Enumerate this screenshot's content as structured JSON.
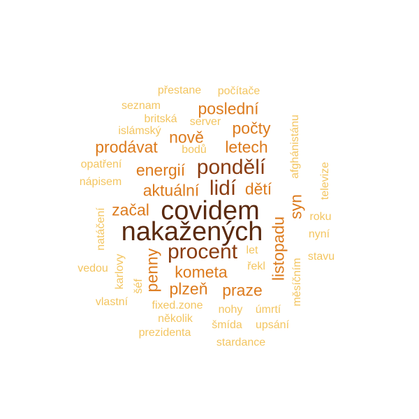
{
  "palette": {
    "darkest": "#5a2a0f",
    "dark": "#8a3c10",
    "medium_dark": "#b8530f",
    "medium": "#dc7a1c",
    "light": "#eda93a",
    "lightest": "#f3c560"
  },
  "words": [
    {
      "text": "přestane",
      "tone": "lightest"
    },
    {
      "text": "počítače",
      "tone": "lightest"
    },
    {
      "text": "seznam",
      "tone": "lightest"
    },
    {
      "text": "poslední",
      "tone": "medium"
    },
    {
      "text": "britská",
      "tone": "lightest"
    },
    {
      "text": "server",
      "tone": "lightest"
    },
    {
      "text": "islámský",
      "tone": "lightest"
    },
    {
      "text": "počty",
      "tone": "medium"
    },
    {
      "text": "nově",
      "tone": "medium"
    },
    {
      "text": "afghánistánu",
      "tone": "lightest"
    },
    {
      "text": "prodávat",
      "tone": "medium"
    },
    {
      "text": "bodů",
      "tone": "lightest"
    },
    {
      "text": "letech",
      "tone": "medium"
    },
    {
      "text": "opatření",
      "tone": "lightest"
    },
    {
      "text": "energií",
      "tone": "medium"
    },
    {
      "text": "pondělí",
      "tone": "dark"
    },
    {
      "text": "televize",
      "tone": "lightest"
    },
    {
      "text": "nápisem",
      "tone": "lightest"
    },
    {
      "text": "aktuální",
      "tone": "medium"
    },
    {
      "text": "lidí",
      "tone": "dark"
    },
    {
      "text": "dětí",
      "tone": "medium"
    },
    {
      "text": "natáčení",
      "tone": "lightest"
    },
    {
      "text": "začal",
      "tone": "medium"
    },
    {
      "text": "covidem",
      "tone": "darkest"
    },
    {
      "text": "syn",
      "tone": "medium"
    },
    {
      "text": "roku",
      "tone": "lightest"
    },
    {
      "text": "nakažených",
      "tone": "darkest"
    },
    {
      "text": "listopadu",
      "tone": "medium"
    },
    {
      "text": "nyní",
      "tone": "lightest"
    },
    {
      "text": "karlovy",
      "tone": "lightest"
    },
    {
      "text": "procent",
      "tone": "dark"
    },
    {
      "text": "penny",
      "tone": "medium"
    },
    {
      "text": "let",
      "tone": "lightest"
    },
    {
      "text": "měsíčním",
      "tone": "lightest"
    },
    {
      "text": "stavu",
      "tone": "lightest"
    },
    {
      "text": "vedou",
      "tone": "lightest"
    },
    {
      "text": "řekl",
      "tone": "lightest"
    },
    {
      "text": "kometa",
      "tone": "medium"
    },
    {
      "text": "šéf",
      "tone": "lightest"
    },
    {
      "text": "plzeň",
      "tone": "medium"
    },
    {
      "text": "praze",
      "tone": "medium"
    },
    {
      "text": "vlastní",
      "tone": "lightest"
    },
    {
      "text": "fixed.zone",
      "tone": "lightest"
    },
    {
      "text": "nohy",
      "tone": "lightest"
    },
    {
      "text": "úmrtí",
      "tone": "lightest"
    },
    {
      "text": "několik",
      "tone": "lightest"
    },
    {
      "text": "šmída",
      "tone": "lightest"
    },
    {
      "text": "upsání",
      "tone": "lightest"
    },
    {
      "text": "prezidenta",
      "tone": "lightest"
    },
    {
      "text": "stardance",
      "tone": "lightest"
    }
  ]
}
